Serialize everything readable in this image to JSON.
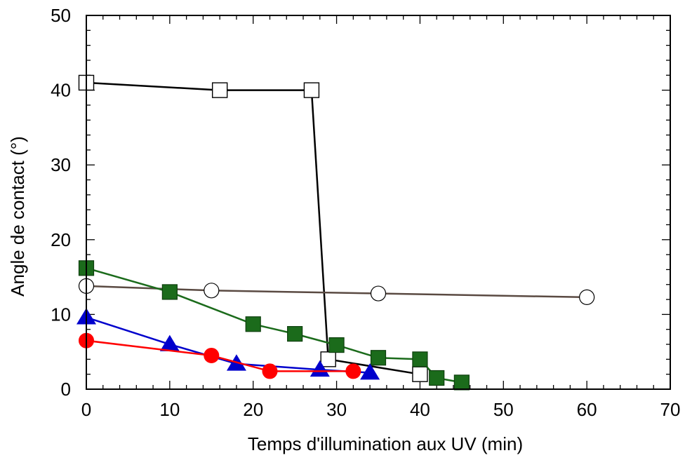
{
  "chart_data": {
    "type": "scatter",
    "title": "",
    "xlabel": "Temps d'illumination aux UV (min)",
    "ylabel": "Angle de contact (°)",
    "xlim": [
      0,
      70
    ],
    "ylim": [
      0,
      50
    ],
    "x_ticks": [
      0,
      10,
      20,
      30,
      40,
      50,
      60,
      70
    ],
    "y_ticks": [
      0,
      10,
      20,
      30,
      40,
      50
    ],
    "x_tick_labels": [
      "0",
      "10",
      "20",
      "30",
      "40",
      "50",
      "60",
      "70"
    ],
    "y_tick_labels": [
      "0",
      "10",
      "20",
      "30",
      "40",
      "50"
    ],
    "x_minor_step": 2,
    "y_minor_step": 2,
    "grid": false,
    "legend": "none",
    "series": [
      {
        "marker": "square-open",
        "color": "#000000",
        "fill": "#ffffff",
        "x": [
          0,
          16,
          27,
          29,
          40
        ],
        "y": [
          41,
          40,
          40,
          4,
          2
        ]
      },
      {
        "marker": "circle-open",
        "color": "#5a4a42",
        "fill": "#ffffff",
        "x": [
          0,
          15,
          35,
          60
        ],
        "y": [
          13.8,
          13.2,
          12.8,
          12.3
        ]
      },
      {
        "marker": "square-filled",
        "color": "#1b6b1b",
        "fill": "#1b6b1b",
        "x": [
          0,
          10,
          20,
          25,
          30,
          35,
          40,
          42,
          45
        ],
        "y": [
          16.2,
          13,
          8.7,
          7.4,
          5.9,
          4.2,
          4,
          1.5,
          0.9
        ]
      },
      {
        "marker": "triangle-filled",
        "color": "#0000cc",
        "fill": "#0000cc",
        "x": [
          0,
          10,
          18,
          28,
          34
        ],
        "y": [
          9.6,
          6,
          3.4,
          2.6,
          2.2
        ]
      },
      {
        "marker": "circle-filled",
        "color": "#ff0000",
        "fill": "#ff0000",
        "x": [
          0,
          15,
          22,
          32
        ],
        "y": [
          6.5,
          4.5,
          2.4,
          2.4
        ]
      }
    ]
  }
}
